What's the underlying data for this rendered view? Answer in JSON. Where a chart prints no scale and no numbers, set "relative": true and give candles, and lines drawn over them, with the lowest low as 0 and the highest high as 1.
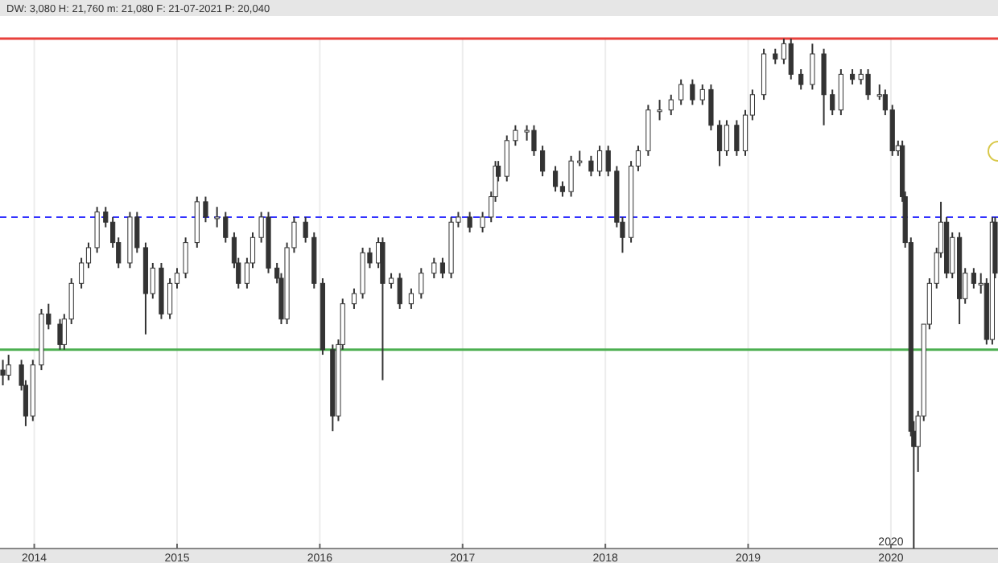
{
  "chart_data": {
    "type": "candlestick",
    "relative": true,
    "color": "#333333",
    "annotations": [
      "DW: 3,080 H: 21,760 m: 21,080 F: 21-07-2021 P: 20,040",
      "2020"
    ],
    "xlim": [
      2013.76,
      2020.75
    ],
    "xticks": [
      2014,
      2015,
      2016,
      2017,
      2018,
      2019,
      2020
    ],
    "grid": "x",
    "ref_lines": [
      {
        "axis": "y",
        "value": 1.0,
        "color": "#e8413c"
      },
      {
        "axis": "y",
        "value": 0.65,
        "color": "#3333ff",
        "line_style": "dashed"
      },
      {
        "axis": "y",
        "value": 0.39,
        "color": "#4caf50"
      }
    ],
    "x": [
      2013.78,
      2013.82,
      2013.91,
      2013.94,
      2013.99,
      2014.05,
      2014.1,
      2014.18,
      2014.21,
      2014.26,
      2014.33,
      2014.38,
      2014.44,
      2014.5,
      2014.55,
      2014.59,
      2014.67,
      2014.72,
      2014.78,
      2014.83,
      2014.89,
      2014.95,
      2015.0,
      2015.06,
      2015.14,
      2015.2,
      2015.28,
      2015.34,
      2015.4,
      2015.43,
      2015.49,
      2015.53,
      2015.59,
      2015.64,
      2015.7,
      2015.73,
      2015.77,
      2015.82,
      2015.9,
      2015.96,
      2016.02,
      2016.09,
      2016.13,
      2016.16,
      2016.24,
      2016.3,
      2016.35,
      2016.41,
      2016.44,
      2016.5,
      2016.56,
      2016.64,
      2016.71,
      2016.8,
      2016.86,
      2016.92,
      2016.97,
      2017.05,
      2017.14,
      2017.2,
      2017.23,
      2017.25,
      2017.31,
      2017.37,
      2017.45,
      2017.5,
      2017.56,
      2017.65,
      2017.7,
      2017.76,
      2017.82,
      2017.9,
      2017.96,
      2018.02,
      2018.08,
      2018.12,
      2018.18,
      2018.23,
      2018.3,
      2018.38,
      2018.46,
      2018.53,
      2018.61,
      2018.68,
      2018.74,
      2018.8,
      2018.85,
      2018.92,
      2018.98,
      2019.03,
      2019.11,
      2019.19,
      2019.25,
      2019.3,
      2019.37,
      2019.45,
      2019.53,
      2019.59,
      2019.65,
      2019.73,
      2019.79,
      2019.84,
      2019.92,
      2019.96,
      2020.01,
      2020.05,
      2020.08,
      2020.1,
      2020.14,
      2020.16,
      2020.19,
      2020.23,
      2020.27,
      2020.32,
      2020.35,
      2020.39,
      2020.43,
      2020.48,
      2020.52,
      2020.58,
      2020.63,
      2020.67,
      2020.71,
      2020.73
    ],
    "ohlc": [
      [
        0.35,
        0.37,
        0.32,
        0.34
      ],
      [
        0.34,
        0.38,
        0.33,
        0.36
      ],
      [
        0.36,
        0.37,
        0.31,
        0.32
      ],
      [
        0.32,
        0.33,
        0.24,
        0.26
      ],
      [
        0.26,
        0.37,
        0.25,
        0.36
      ],
      [
        0.36,
        0.47,
        0.35,
        0.46
      ],
      [
        0.46,
        0.48,
        0.43,
        0.44
      ],
      [
        0.44,
        0.45,
        0.39,
        0.4
      ],
      [
        0.4,
        0.46,
        0.39,
        0.45
      ],
      [
        0.45,
        0.53,
        0.44,
        0.52
      ],
      [
        0.52,
        0.57,
        0.51,
        0.56
      ],
      [
        0.56,
        0.6,
        0.55,
        0.59
      ],
      [
        0.59,
        0.67,
        0.58,
        0.66
      ],
      [
        0.66,
        0.67,
        0.63,
        0.64
      ],
      [
        0.64,
        0.65,
        0.59,
        0.6
      ],
      [
        0.6,
        0.61,
        0.55,
        0.56
      ],
      [
        0.56,
        0.66,
        0.55,
        0.65
      ],
      [
        0.65,
        0.66,
        0.58,
        0.59
      ],
      [
        0.59,
        0.6,
        0.42,
        0.5
      ],
      [
        0.5,
        0.56,
        0.49,
        0.55
      ],
      [
        0.55,
        0.56,
        0.45,
        0.46
      ],
      [
        0.46,
        0.53,
        0.45,
        0.52
      ],
      [
        0.52,
        0.55,
        0.51,
        0.54
      ],
      [
        0.54,
        0.61,
        0.53,
        0.6
      ],
      [
        0.6,
        0.69,
        0.59,
        0.68
      ],
      [
        0.68,
        0.69,
        0.64,
        0.65
      ],
      [
        0.65,
        0.67,
        0.63,
        0.65
      ],
      [
        0.65,
        0.66,
        0.6,
        0.61
      ],
      [
        0.61,
        0.62,
        0.55,
        0.56
      ],
      [
        0.56,
        0.57,
        0.51,
        0.52
      ],
      [
        0.52,
        0.57,
        0.51,
        0.56
      ],
      [
        0.56,
        0.62,
        0.55,
        0.61
      ],
      [
        0.61,
        0.66,
        0.6,
        0.65
      ],
      [
        0.65,
        0.66,
        0.54,
        0.55
      ],
      [
        0.55,
        0.56,
        0.52,
        0.53
      ],
      [
        0.53,
        0.54,
        0.44,
        0.45
      ],
      [
        0.45,
        0.6,
        0.44,
        0.59
      ],
      [
        0.59,
        0.65,
        0.58,
        0.64
      ],
      [
        0.64,
        0.65,
        0.6,
        0.61
      ],
      [
        0.61,
        0.62,
        0.51,
        0.52
      ],
      [
        0.52,
        0.53,
        0.38,
        0.39
      ],
      [
        0.39,
        0.4,
        0.23,
        0.26
      ],
      [
        0.26,
        0.41,
        0.25,
        0.4
      ],
      [
        0.4,
        0.49,
        0.39,
        0.48
      ],
      [
        0.48,
        0.51,
        0.47,
        0.5
      ],
      [
        0.5,
        0.59,
        0.49,
        0.58
      ],
      [
        0.58,
        0.59,
        0.55,
        0.56
      ],
      [
        0.56,
        0.61,
        0.55,
        0.6
      ],
      [
        0.6,
        0.61,
        0.33,
        0.52
      ],
      [
        0.52,
        0.54,
        0.51,
        0.53
      ],
      [
        0.53,
        0.54,
        0.47,
        0.48
      ],
      [
        0.48,
        0.51,
        0.47,
        0.5
      ],
      [
        0.5,
        0.55,
        0.49,
        0.54
      ],
      [
        0.54,
        0.57,
        0.53,
        0.56
      ],
      [
        0.56,
        0.57,
        0.53,
        0.54
      ],
      [
        0.54,
        0.65,
        0.53,
        0.64
      ],
      [
        0.64,
        0.66,
        0.63,
        0.65
      ],
      [
        0.65,
        0.66,
        0.62,
        0.63
      ],
      [
        0.63,
        0.66,
        0.62,
        0.65
      ],
      [
        0.65,
        0.7,
        0.64,
        0.69
      ],
      [
        0.69,
        0.76,
        0.68,
        0.75
      ],
      [
        0.75,
        0.76,
        0.72,
        0.73
      ],
      [
        0.73,
        0.81,
        0.72,
        0.8
      ],
      [
        0.8,
        0.83,
        0.79,
        0.82
      ],
      [
        0.82,
        0.83,
        0.8,
        0.82
      ],
      [
        0.82,
        0.83,
        0.77,
        0.78
      ],
      [
        0.78,
        0.79,
        0.73,
        0.74
      ],
      [
        0.74,
        0.75,
        0.7,
        0.71
      ],
      [
        0.71,
        0.72,
        0.69,
        0.7
      ],
      [
        0.7,
        0.77,
        0.69,
        0.76
      ],
      [
        0.76,
        0.78,
        0.75,
        0.76
      ],
      [
        0.76,
        0.77,
        0.73,
        0.74
      ],
      [
        0.74,
        0.79,
        0.73,
        0.78
      ],
      [
        0.78,
        0.79,
        0.73,
        0.74
      ],
      [
        0.74,
        0.75,
        0.63,
        0.64
      ],
      [
        0.64,
        0.65,
        0.58,
        0.61
      ],
      [
        0.61,
        0.76,
        0.6,
        0.75
      ],
      [
        0.75,
        0.79,
        0.74,
        0.78
      ],
      [
        0.78,
        0.87,
        0.77,
        0.86
      ],
      [
        0.86,
        0.88,
        0.84,
        0.86
      ],
      [
        0.86,
        0.89,
        0.85,
        0.88
      ],
      [
        0.88,
        0.92,
        0.87,
        0.91
      ],
      [
        0.91,
        0.92,
        0.87,
        0.88
      ],
      [
        0.88,
        0.91,
        0.87,
        0.9
      ],
      [
        0.9,
        0.91,
        0.82,
        0.83
      ],
      [
        0.83,
        0.84,
        0.75,
        0.78
      ],
      [
        0.78,
        0.84,
        0.77,
        0.83
      ],
      [
        0.83,
        0.84,
        0.77,
        0.78
      ],
      [
        0.78,
        0.86,
        0.77,
        0.85
      ],
      [
        0.85,
        0.9,
        0.84,
        0.89
      ],
      [
        0.89,
        0.98,
        0.88,
        0.97
      ],
      [
        0.97,
        0.98,
        0.95,
        0.96
      ],
      [
        0.96,
        1.0,
        0.95,
        0.99
      ],
      [
        0.99,
        1.0,
        0.92,
        0.93
      ],
      [
        0.93,
        0.94,
        0.9,
        0.91
      ],
      [
        0.91,
        0.99,
        0.9,
        0.97
      ],
      [
        0.97,
        0.98,
        0.83,
        0.89
      ],
      [
        0.89,
        0.9,
        0.85,
        0.86
      ],
      [
        0.86,
        0.94,
        0.85,
        0.93
      ],
      [
        0.93,
        0.94,
        0.91,
        0.92
      ],
      [
        0.92,
        0.94,
        0.91,
        0.93
      ],
      [
        0.93,
        0.94,
        0.88,
        0.89
      ],
      [
        0.89,
        0.91,
        0.88,
        0.89
      ],
      [
        0.89,
        0.9,
        0.85,
        0.86
      ],
      [
        0.86,
        0.87,
        0.77,
        0.78
      ],
      [
        0.78,
        0.8,
        0.77,
        0.79
      ],
      [
        0.79,
        0.8,
        0.68,
        0.69
      ],
      [
        0.69,
        0.7,
        0.59,
        0.6
      ],
      [
        0.6,
        0.61,
        0.22,
        0.23
      ],
      [
        0.23,
        0.25,
        0.0,
        0.2
      ],
      [
        0.2,
        0.27,
        0.15,
        0.26
      ],
      [
        0.26,
        0.44,
        0.25,
        0.44
      ],
      [
        0.44,
        0.53,
        0.43,
        0.52
      ],
      [
        0.52,
        0.59,
        0.51,
        0.58
      ],
      [
        0.58,
        0.68,
        0.57,
        0.64
      ],
      [
        0.64,
        0.65,
        0.53,
        0.54
      ],
      [
        0.54,
        0.62,
        0.53,
        0.61
      ],
      [
        0.61,
        0.62,
        0.44,
        0.49
      ],
      [
        0.49,
        0.55,
        0.48,
        0.54
      ],
      [
        0.54,
        0.55,
        0.51,
        0.52
      ],
      [
        0.52,
        0.54,
        0.5,
        0.52
      ],
      [
        0.52,
        0.53,
        0.4,
        0.41
      ],
      [
        0.41,
        0.65,
        0.4,
        0.64
      ],
      [
        0.64,
        0.65,
        0.53,
        0.54
      ]
    ]
  }
}
